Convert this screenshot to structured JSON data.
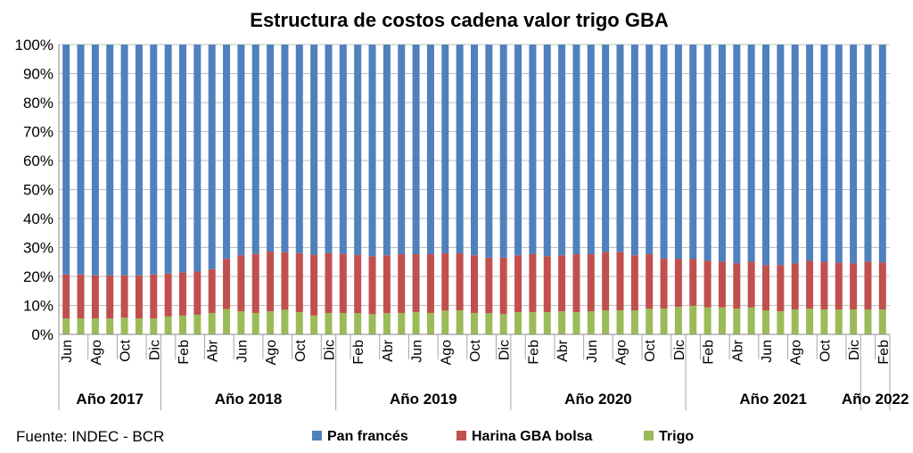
{
  "chart_data": {
    "type": "bar",
    "stacked": "percent",
    "title": "Estructura de costos cadena valor trigo GBA",
    "source": "Fuente: INDEC - BCR",
    "ylim": [
      0,
      100
    ],
    "y_ticks": [
      "0%",
      "10%",
      "20%",
      "30%",
      "40%",
      "50%",
      "60%",
      "70%",
      "80%",
      "90%",
      "100%"
    ],
    "grid": true,
    "legend_position": "bottom",
    "tick_labels": [
      "Jun",
      "",
      "Ago",
      "",
      "Oct",
      "",
      "Dic",
      "",
      "Feb",
      "",
      "Abr",
      "",
      "Jun",
      "",
      "Ago",
      "",
      "Oct",
      "",
      "Dic",
      "",
      "Feb",
      "",
      "Abr",
      "",
      "Jun",
      "",
      "Ago",
      "",
      "Oct",
      "",
      "Dic",
      "",
      "Feb",
      "",
      "Abr",
      "",
      "Jun",
      "",
      "Ago",
      "",
      "Oct",
      "",
      "Dic",
      "",
      "Feb",
      "",
      "Abr",
      "",
      "Jun",
      "",
      "Ago",
      "",
      "Oct",
      "",
      "Dic",
      "",
      "Feb"
    ],
    "year_groups": [
      {
        "label": "Año 2017",
        "count": 7
      },
      {
        "label": "Año 2018",
        "count": 12
      },
      {
        "label": "Año 2019",
        "count": 12
      },
      {
        "label": "Año 2020",
        "count": 12
      },
      {
        "label": "Año 2021",
        "count": 12
      },
      {
        "label": "Año 2022",
        "count": 2
      }
    ],
    "series": [
      {
        "name": "Trigo",
        "color": "#9BBB59",
        "values": [
          5.5,
          5.5,
          5.5,
          5.5,
          5.8,
          5.5,
          5.5,
          6.2,
          6.5,
          6.8,
          7.4,
          8.8,
          8.0,
          7.4,
          8.0,
          8.5,
          7.7,
          6.5,
          7.4,
          7.4,
          7.3,
          7.0,
          7.3,
          7.4,
          7.7,
          7.4,
          8.2,
          8.3,
          7.4,
          7.3,
          7.0,
          7.7,
          7.7,
          7.7,
          8.0,
          7.7,
          8.0,
          8.3,
          8.3,
          8.3,
          8.9,
          8.9,
          9.5,
          9.9,
          9.3,
          9.3,
          8.9,
          9.3,
          8.3,
          8.0,
          8.6,
          8.9,
          8.6,
          8.6,
          8.6,
          8.6,
          8.6
        ]
      },
      {
        "name": "Harina GBA bolsa",
        "color": "#C0504D",
        "values": [
          15.2,
          15.2,
          14.9,
          14.9,
          14.6,
          14.9,
          15.2,
          14.8,
          14.9,
          14.9,
          15.1,
          17.3,
          19.3,
          20.4,
          20.6,
          19.9,
          20.4,
          21.0,
          20.7,
          20.4,
          20.2,
          20.0,
          20.0,
          20.3,
          20.0,
          20.3,
          19.8,
          19.7,
          19.9,
          19.2,
          19.5,
          19.6,
          20.0,
          19.3,
          19.3,
          20.0,
          19.7,
          20.2,
          20.2,
          19.0,
          18.8,
          17.3,
          16.5,
          16.1,
          16.1,
          15.8,
          15.6,
          15.8,
          15.6,
          15.9,
          15.9,
          16.5,
          16.5,
          16.2,
          15.9,
          16.5,
          16.2
        ]
      },
      {
        "name": "Pan francés",
        "color": "#4F81BD",
        "values": [
          79.3,
          79.3,
          79.6,
          79.6,
          79.6,
          79.6,
          79.3,
          79.0,
          78.6,
          78.3,
          77.5,
          73.9,
          72.7,
          72.2,
          71.4,
          71.6,
          71.9,
          72.5,
          71.9,
          72.2,
          72.5,
          73.0,
          72.7,
          72.3,
          72.3,
          72.3,
          72.0,
          72.0,
          72.7,
          73.5,
          73.5,
          72.7,
          72.3,
          73.0,
          72.7,
          72.3,
          72.3,
          71.5,
          71.5,
          72.7,
          72.3,
          73.8,
          74.0,
          74.0,
          74.6,
          74.9,
          75.5,
          74.9,
          76.1,
          76.1,
          75.5,
          74.6,
          74.9,
          75.2,
          75.5,
          74.9,
          75.2
        ]
      }
    ],
    "legend": [
      "Pan francés",
      "Harina GBA bolsa",
      "Trigo"
    ],
    "gridline_color": "#BFBFBF"
  }
}
